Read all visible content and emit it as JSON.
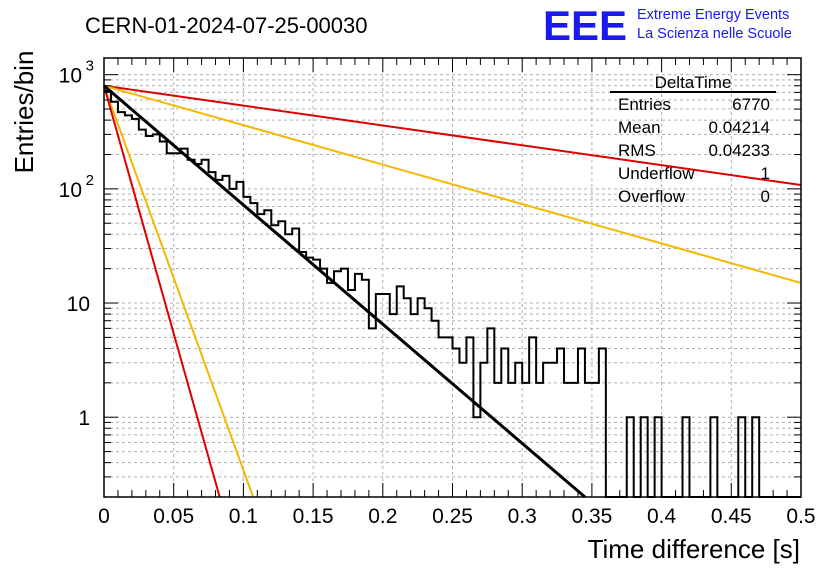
{
  "header": {
    "run_title": "CERN-01-2024-07-25-00030",
    "logo_text": "EEE",
    "logo_line1": "Extreme Energy Events",
    "logo_line2": "La Scienza nelle Scuole"
  },
  "stats_box": {
    "title": "DeltaTime",
    "rows": [
      {
        "label": "Entries",
        "value": "6770"
      },
      {
        "label": "Mean",
        "value": "0.04214"
      },
      {
        "label": "RMS",
        "value": "0.04233"
      },
      {
        "label": "Underflow",
        "value": "1"
      },
      {
        "label": "Overflow",
        "value": "0"
      }
    ]
  },
  "colors": {
    "histogram": "#000000",
    "fit": "#000000",
    "red_lines": "#dd0000",
    "orange_lines": "#f5b800",
    "grid": "#b0b0b0",
    "logo": "#1a1aee"
  },
  "chart_data": {
    "type": "line",
    "title": "CERN-01-2024-07-25-00030",
    "xlabel": "Time difference [s]",
    "ylabel": "Entries/bin",
    "xlim": [
      0,
      0.5
    ],
    "ylim": [
      0.2,
      1400
    ],
    "yscale": "log",
    "grid": true,
    "legend": "top-right",
    "x_ticks": [
      "0",
      "0.05",
      "0.1",
      "0.15",
      "0.2",
      "0.25",
      "0.3",
      "0.35",
      "0.4",
      "0.45",
      "0.5"
    ],
    "y_ticks": [
      {
        "value": 1,
        "label": "1"
      },
      {
        "value": 10,
        "label": "10"
      },
      {
        "value": 100,
        "label": "10",
        "exp": "2"
      },
      {
        "value": 1000,
        "label": "10",
        "exp": "3"
      }
    ],
    "histogram": {
      "bin_width": 0.005,
      "x_start": 0,
      "counts": [
        720,
        580,
        470,
        440,
        410,
        330,
        290,
        300,
        260,
        205,
        205,
        225,
        180,
        165,
        180,
        140,
        120,
        130,
        100,
        115,
        85,
        75,
        60,
        65,
        48,
        52,
        40,
        45,
        28,
        25,
        24,
        20,
        15,
        19,
        20,
        13,
        18,
        16,
        6,
        12,
        12,
        8,
        14,
        11,
        8,
        11,
        9,
        7,
        5,
        5,
        4,
        3,
        5,
        1,
        3,
        6,
        2,
        4,
        2,
        3,
        2,
        5,
        2,
        3,
        3,
        4,
        2,
        2,
        4,
        2,
        2,
        4,
        0.1,
        0.1,
        0.1,
        1,
        0.1,
        1,
        0.1,
        1,
        0.1,
        0.1,
        0.1,
        1,
        0.1,
        0.1,
        0.1,
        1,
        0.1,
        0.1,
        0.1,
        1,
        0.1,
        1,
        0.1,
        0.1,
        0.1,
        0.1,
        0.1,
        0.1
      ]
    },
    "series": [
      {
        "x": [
          0,
          0.345
        ],
        "y": [
          800,
          0.2
        ],
        "color": "black"
      },
      {
        "x": [
          0,
          0.5
        ],
        "y": [
          800,
          108
        ],
        "color": "red"
      },
      {
        "x": [
          0,
          0.5
        ],
        "y": [
          800,
          15
        ],
        "color": "orange"
      },
      {
        "x": [
          0,
          0.107
        ],
        "y": [
          800,
          0.2
        ],
        "color": "orange"
      },
      {
        "x": [
          0,
          0.083
        ],
        "y": [
          800,
          0.2
        ],
        "color": "red"
      }
    ]
  }
}
